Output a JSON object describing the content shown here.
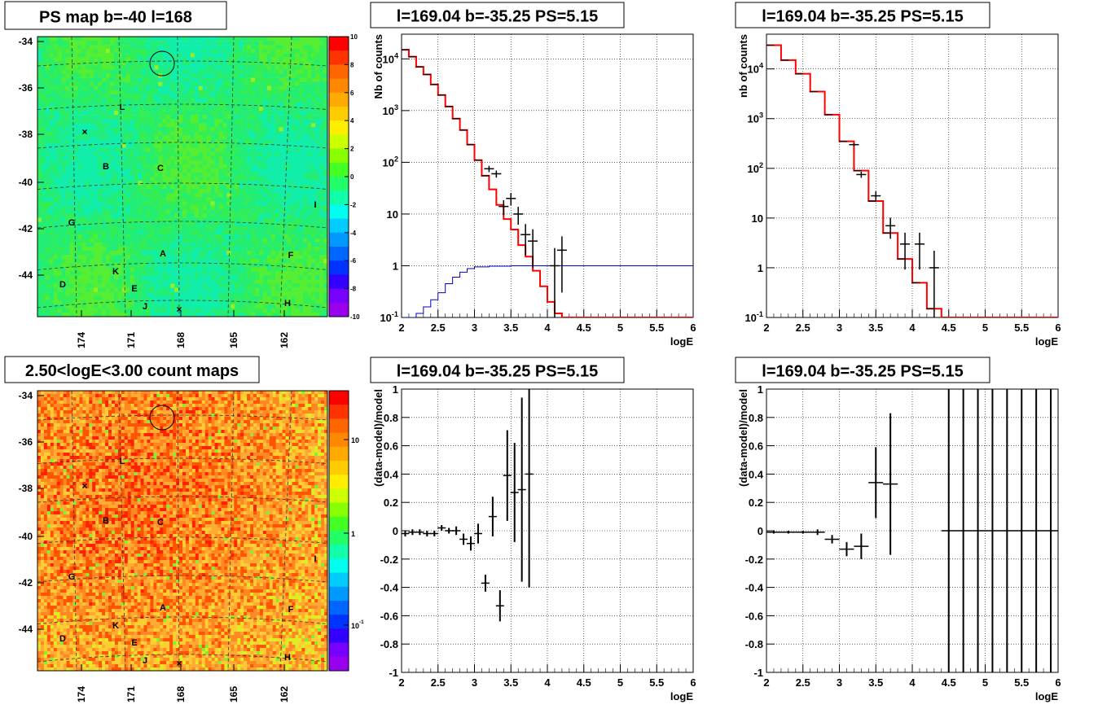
{
  "colors": {
    "model_line": "#ff0000",
    "background_line": "#0000cc",
    "data_marker": "#000000",
    "map_green": "#33ee55",
    "map_orange": "#ff8822"
  },
  "panels": {
    "ps_map": {
      "title": "PS map b=-40 l=168"
    },
    "spectrum_left": {
      "title": "l=169.04 b=-35.25 PS=5.15"
    },
    "spectrum_right": {
      "title": "l=169.04 b=-35.25 PS=5.15"
    },
    "count_map": {
      "title": "2.50<logE<3.00 count maps"
    },
    "residual_left": {
      "title": "l=169.04 b=-35.25 PS=5.15"
    },
    "residual_right": {
      "title": "l=169.04 b=-35.25 PS=5.15"
    }
  },
  "chart_data": [
    {
      "id": "ps_map",
      "type": "heatmap",
      "title": "PS map b=-40 l=168",
      "y_ticks": [
        "-34",
        "-36",
        "-38",
        "-40",
        "-42",
        "-44"
      ],
      "x_ticks": [
        "174",
        "171",
        "168",
        "165",
        "162"
      ],
      "colorbar_ticks": [
        "10",
        "8",
        "6",
        "4",
        "2",
        "0",
        "-2",
        "-4",
        "-6",
        "-8",
        "-10"
      ],
      "colorbar_range": [
        -10,
        10
      ],
      "source_labels": [
        "L",
        "B",
        "C",
        "G",
        "I",
        "A",
        "F",
        "K",
        "D",
        "E",
        "H",
        "J"
      ]
    },
    {
      "id": "spectrum_left",
      "type": "line",
      "title": "l=169.04 b=-35.25 PS=5.15",
      "xlabel": "logE",
      "ylabel": "Nb of counts",
      "xlim": [
        2,
        6
      ],
      "ylim": [
        0.1,
        30000
      ],
      "yscale": "log",
      "grid": true,
      "x_ticks": [
        "2",
        "2.5",
        "3",
        "3.5",
        "4",
        "4.5",
        "5",
        "5.5",
        "6"
      ],
      "y_ticks": [
        "10^4",
        "10^3",
        "10^2",
        "10",
        "1",
        "10^-1"
      ],
      "series": [
        {
          "values_x": [
            2.0,
            2.1,
            2.2,
            2.3,
            2.4,
            2.5,
            2.6,
            2.7,
            2.8,
            2.9,
            3.0,
            3.1,
            3.2,
            3.3,
            3.4,
            3.5,
            3.6,
            3.7,
            3.8,
            3.9,
            4.0,
            4.1,
            4.2,
            4.3,
            6.0
          ],
          "values_y": [
            15000,
            11000,
            7000,
            5000,
            3200,
            2000,
            1200,
            700,
            420,
            220,
            110,
            55,
            30,
            15,
            8,
            5,
            2.5,
            1.5,
            0.8,
            0.4,
            0.2,
            0.12,
            0.1,
            0.1,
            0.1
          ]
        },
        {
          "values_x": [
            2.0,
            2.1,
            2.2,
            2.3,
            2.4,
            2.5,
            2.6,
            2.7,
            2.8,
            2.9,
            3.0,
            3.2,
            3.5,
            4.0,
            6.0
          ],
          "values_y": [
            0.1,
            0.1,
            0.12,
            0.16,
            0.22,
            0.3,
            0.45,
            0.6,
            0.75,
            0.88,
            0.95,
            0.98,
            1.0,
            1.0,
            1.0
          ]
        },
        {
          "values_x": [
            3.2,
            3.3,
            3.4,
            3.5,
            3.6,
            3.7,
            3.8,
            4.1,
            4.2
          ],
          "values_y": [
            75,
            60,
            14,
            20,
            10,
            4,
            3,
            1,
            2
          ]
        }
      ]
    },
    {
      "id": "spectrum_right",
      "type": "line",
      "title": "l=169.04 b=-35.25 PS=5.15",
      "xlabel": "logE",
      "ylabel": "nb of counts",
      "xlim": [
        2,
        6
      ],
      "ylim": [
        0.1,
        50000
      ],
      "yscale": "log",
      "grid": true,
      "x_ticks": [
        "2",
        "2.5",
        "3",
        "3.5",
        "4",
        "4.5",
        "5",
        "5.5",
        "6"
      ],
      "y_ticks": [
        "10^4",
        "10^3",
        "10^2",
        "10",
        "1",
        "10^-1"
      ],
      "series": [
        {
          "values_x": [
            2.0,
            2.2,
            2.4,
            2.6,
            2.8,
            3.0,
            3.2,
            3.4,
            3.6,
            3.8,
            4.0,
            4.2,
            4.4,
            6.0
          ],
          "values_y": [
            30000,
            15000,
            8000,
            3500,
            1200,
            350,
            90,
            22,
            5,
            1.5,
            0.5,
            0.15,
            0.1,
            0.1
          ]
        },
        {
          "values_x": [
            3.2,
            3.3,
            3.5,
            3.7,
            3.9,
            4.1,
            4.3
          ],
          "values_y": [
            300,
            75,
            28,
            7,
            3,
            3,
            1
          ]
        }
      ]
    },
    {
      "id": "count_map",
      "type": "heatmap",
      "title": "2.50<logE<3.00 count maps",
      "y_ticks": [
        "-34",
        "-36",
        "-38",
        "-40",
        "-42",
        "-44"
      ],
      "x_ticks": [
        "174",
        "171",
        "168",
        "165",
        "162"
      ],
      "colorbar_ticks": [
        "10",
        "1",
        "10^-1"
      ],
      "colorbar_scale": "log",
      "source_labels": [
        "L",
        "B",
        "C",
        "G",
        "I",
        "A",
        "F",
        "K",
        "D",
        "E",
        "H",
        "J"
      ]
    },
    {
      "id": "residual_left",
      "type": "scatter",
      "title": "l=169.04 b=-35.25 PS=5.15",
      "xlabel": "logE",
      "ylabel": "(data-model)/model",
      "xlim": [
        2,
        6
      ],
      "ylim": [
        -1,
        1
      ],
      "grid": true,
      "x_ticks": [
        "2",
        "2.5",
        "3",
        "3.5",
        "4",
        "4.5",
        "5",
        "5.5",
        "6"
      ],
      "y_ticks": [
        "1",
        "0.8",
        "0.6",
        "0.4",
        "0.2",
        "0",
        "-0.2",
        "-0.4",
        "-0.6",
        "-0.8",
        "-1"
      ],
      "x": [
        2.05,
        2.15,
        2.25,
        2.35,
        2.45,
        2.55,
        2.65,
        2.75,
        2.85,
        2.95,
        3.05,
        3.15,
        3.25,
        3.35,
        3.45,
        3.55,
        3.65,
        3.75
      ],
      "y": [
        -0.02,
        -0.01,
        -0.01,
        -0.02,
        -0.02,
        0.02,
        0.0,
        0.0,
        -0.06,
        -0.09,
        -0.02,
        -0.37,
        0.1,
        -0.53,
        0.39,
        0.27,
        0.29,
        0.4
      ],
      "y_err": [
        0.02,
        0.02,
        0.02,
        0.02,
        0.02,
        0.02,
        0.02,
        0.03,
        0.04,
        0.05,
        0.07,
        0.06,
        0.14,
        0.11,
        0.32,
        0.35,
        0.65,
        0.8
      ]
    },
    {
      "id": "residual_right",
      "type": "scatter",
      "title": "l=169.04 b=-35.25 PS=5.15",
      "xlabel": "logE",
      "ylabel": "(data-model)/model",
      "xlim": [
        2,
        6
      ],
      "ylim": [
        -1,
        1
      ],
      "grid": true,
      "x_ticks": [
        "2",
        "2.5",
        "3",
        "3.5",
        "4",
        "4.5",
        "5",
        "5.5",
        "6"
      ],
      "y_ticks": [
        "1",
        "0.8",
        "0.6",
        "0.4",
        "0.2",
        "0",
        "-0.2",
        "-0.4",
        "-0.6",
        "-0.8",
        "-1"
      ],
      "x": [
        2.1,
        2.3,
        2.5,
        2.7,
        2.9,
        3.1,
        3.3,
        3.5,
        3.7,
        4.5,
        4.7,
        4.9,
        5.1,
        5.3,
        5.5,
        5.7,
        5.9
      ],
      "y": [
        -0.01,
        -0.01,
        -0.01,
        -0.01,
        -0.06,
        -0.13,
        -0.11,
        0.34,
        0.33,
        0,
        0,
        0,
        0,
        0,
        0,
        0,
        0
      ],
      "y_err": [
        0.01,
        0.01,
        0.01,
        0.02,
        0.03,
        0.05,
        0.09,
        0.25,
        0.5,
        3,
        3,
        3,
        3,
        3,
        3,
        3,
        3
      ]
    }
  ]
}
